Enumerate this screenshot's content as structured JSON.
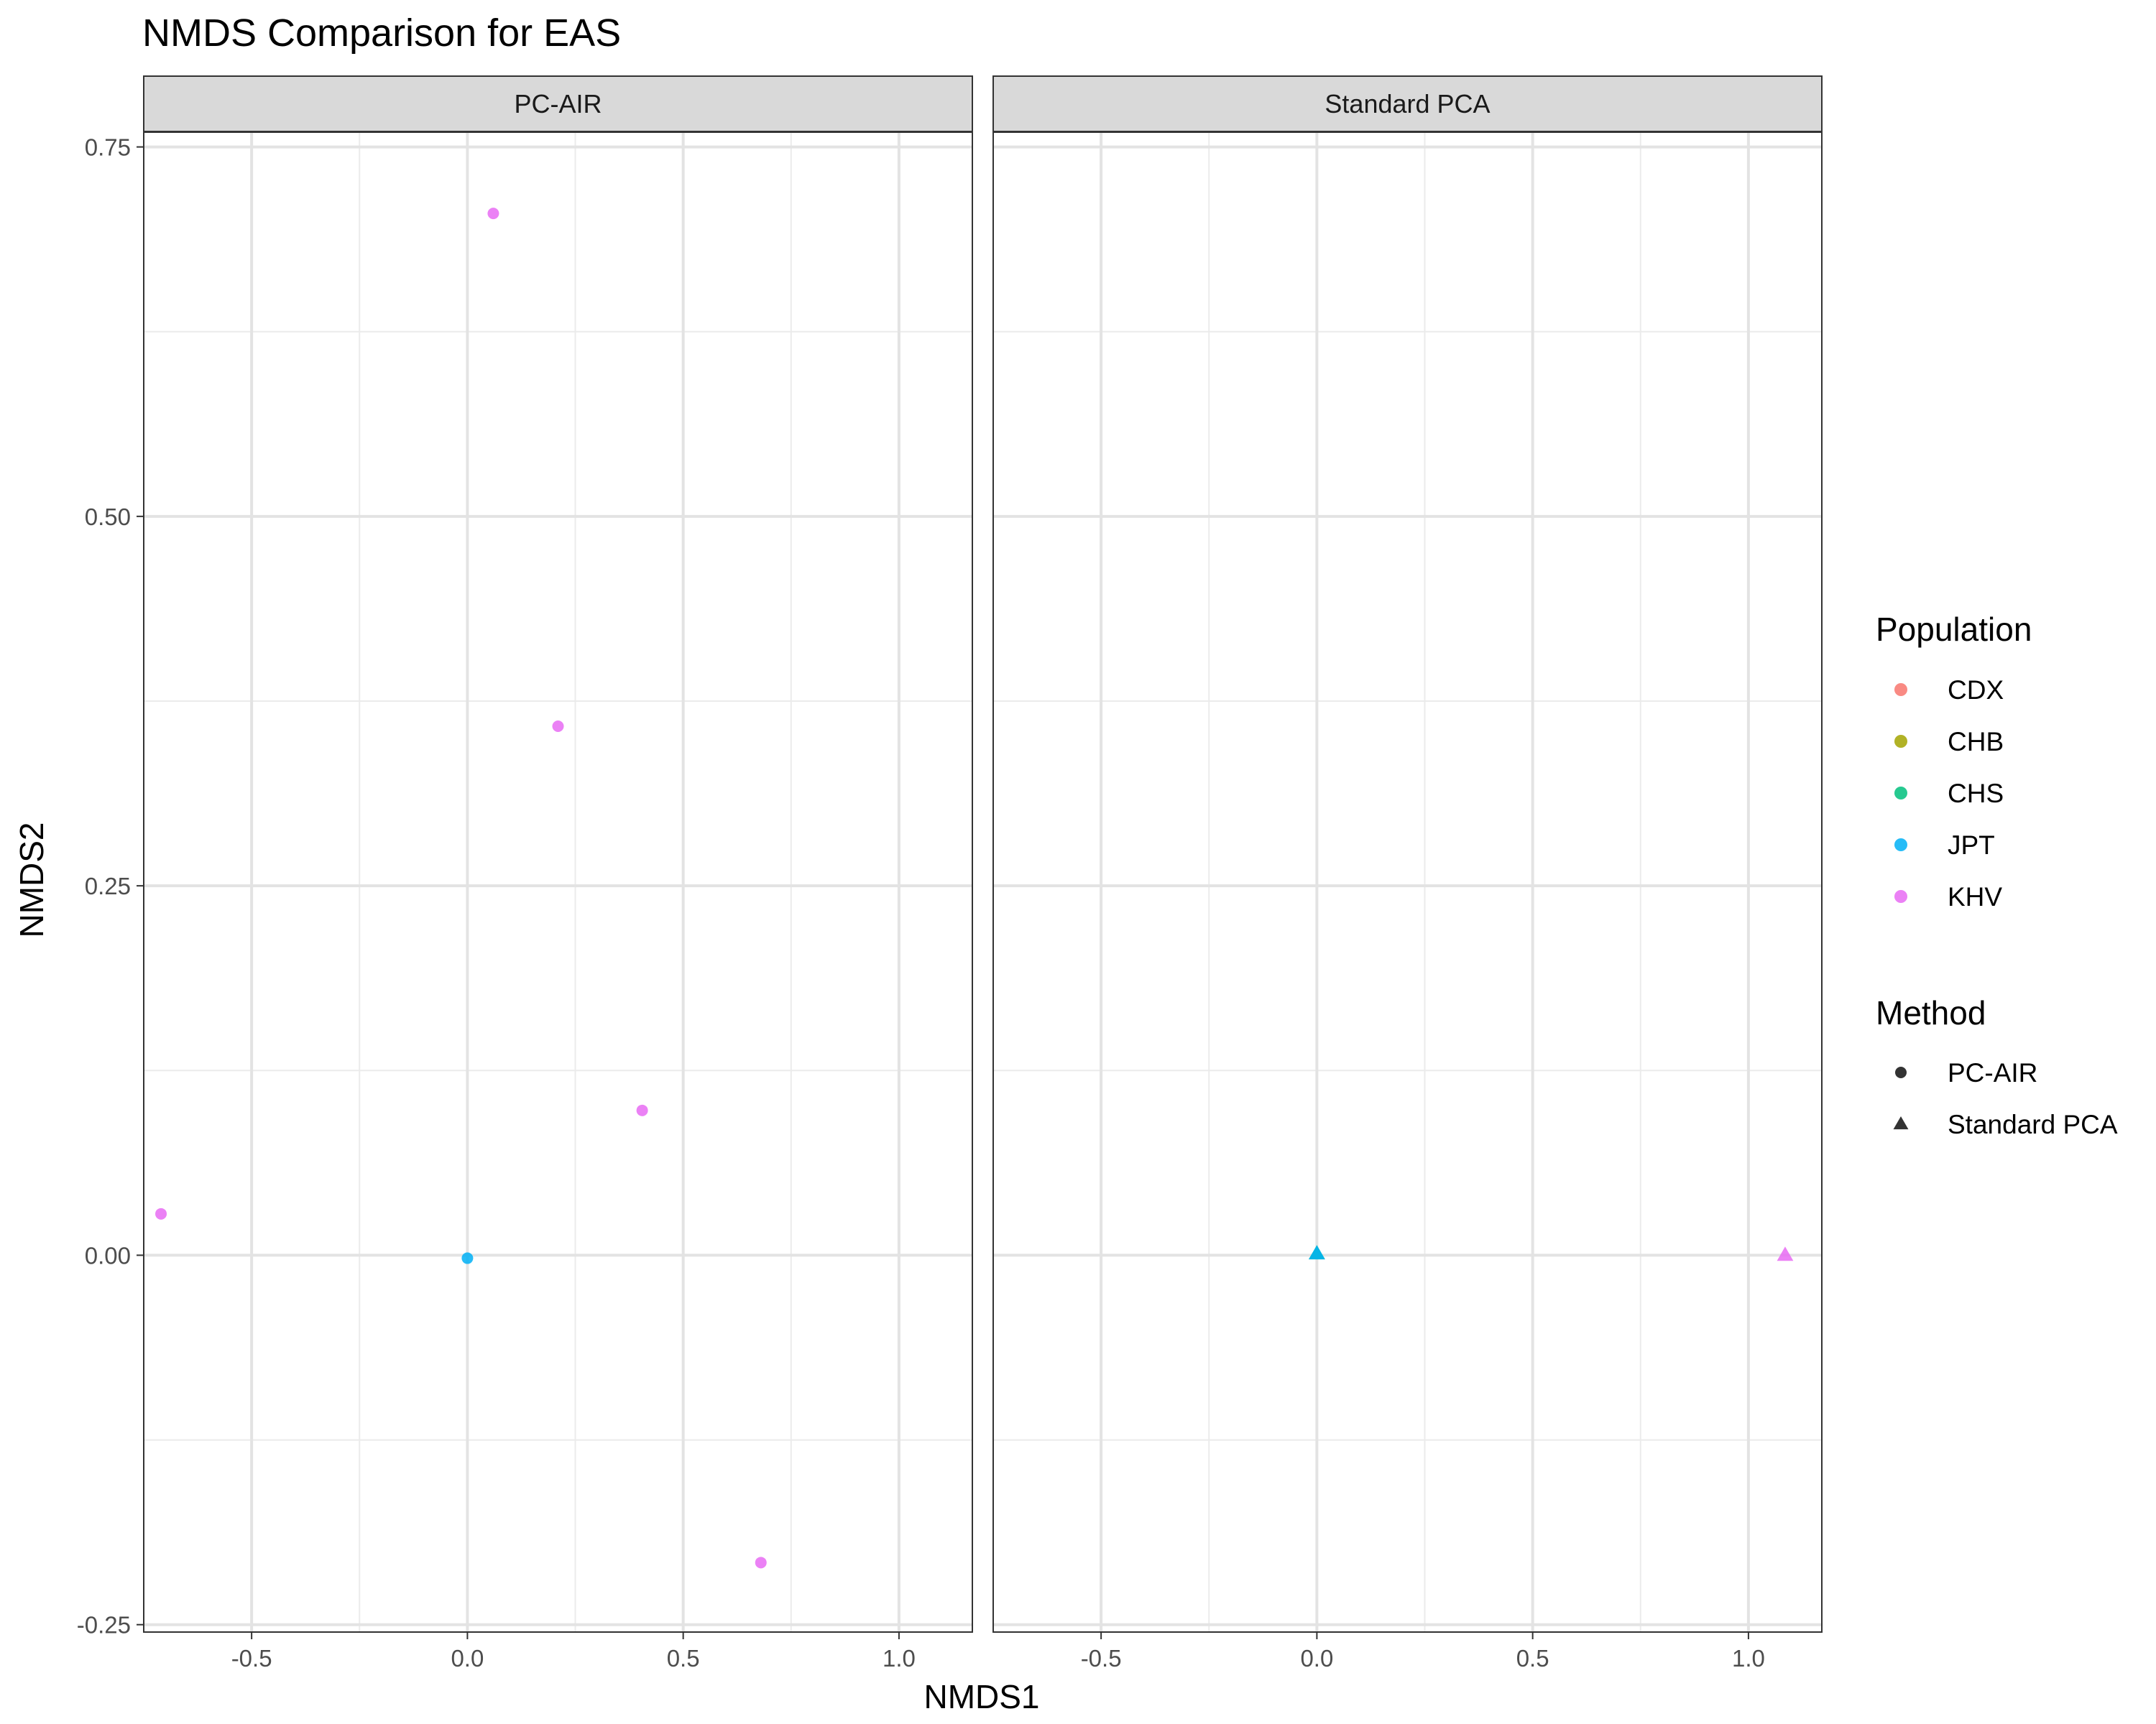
{
  "chart_data": {
    "type": "scatter",
    "title": "NMDS Comparison for EAS",
    "xlabel": "NMDS1",
    "ylabel": "NMDS2",
    "xlim": [
      -0.75,
      1.17
    ],
    "ylim": [
      -0.255,
      0.76
    ],
    "x_ticks": [
      -0.5,
      0.0,
      0.5,
      1.0
    ],
    "x_tick_labels": [
      "-0.5",
      "0.0",
      "0.5",
      "1.0"
    ],
    "y_ticks": [
      -0.25,
      0.0,
      0.25,
      0.5,
      0.75
    ],
    "y_tick_labels": [
      "-0.25",
      "0.00",
      "0.25",
      "0.50",
      "0.75"
    ],
    "grid": true,
    "legend_placement": "right",
    "facets": [
      {
        "label": "PC-AIR",
        "method": "PC-AIR",
        "points": [
          {
            "population": "KHV",
            "x": 0.06,
            "y": 0.705
          },
          {
            "population": "KHV",
            "x": 0.21,
            "y": 0.358
          },
          {
            "population": "KHV",
            "x": 0.405,
            "y": 0.098
          },
          {
            "population": "KHV",
            "x": -0.71,
            "y": 0.028
          },
          {
            "population": "KHV",
            "x": 0.68,
            "y": -0.208
          },
          {
            "population": "JPT",
            "x": 0.0,
            "y": -0.002
          }
        ]
      },
      {
        "label": "Standard PCA",
        "method": "Standard PCA",
        "points": [
          {
            "population": "CHS",
            "x": 0.0,
            "y": 0.001
          },
          {
            "population": "JPT",
            "x": 0.0,
            "y": 0.001
          },
          {
            "population": "KHV",
            "x": 1.085,
            "y": 0.0
          }
        ]
      }
    ],
    "legend": {
      "population": {
        "title": "Population",
        "items": [
          {
            "label": "CDX",
            "color": "#F8766D"
          },
          {
            "label": "CHB",
            "color": "#A3A500"
          },
          {
            "label": "CHS",
            "color": "#00BF7D"
          },
          {
            "label": "JPT",
            "color": "#00B0F6"
          },
          {
            "label": "KHV",
            "color": "#E76BF3"
          }
        ]
      },
      "method": {
        "title": "Method",
        "items": [
          {
            "label": "PC-AIR",
            "shape": "circle"
          },
          {
            "label": "Standard PCA",
            "shape": "triangle"
          }
        ]
      }
    }
  }
}
